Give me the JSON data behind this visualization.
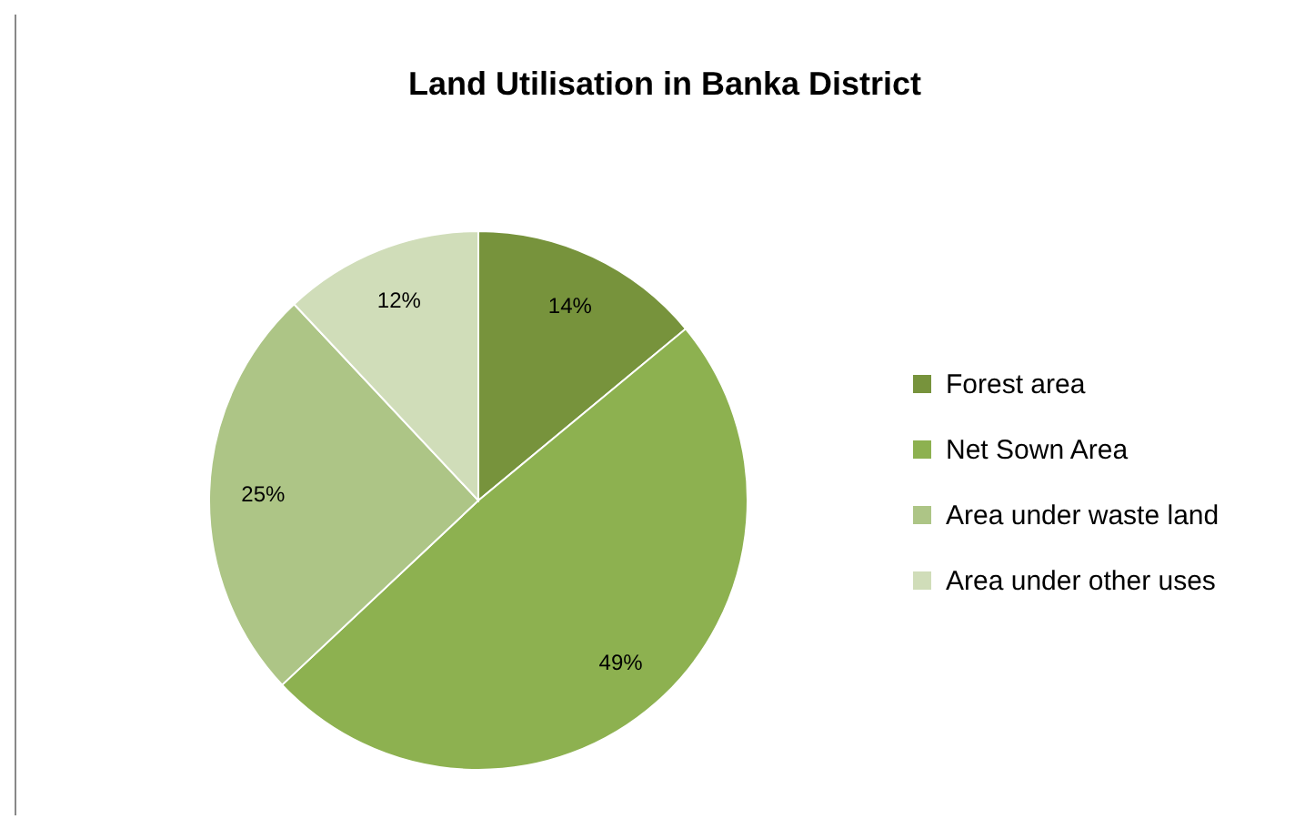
{
  "chart_data": {
    "type": "pie",
    "title": "Land Utilisation in Banka District",
    "categories": [
      "Forest  area",
      "Net Sown Area",
      "Area under waste land",
      "Area under other uses"
    ],
    "values": [
      14,
      49,
      25,
      12
    ],
    "colors": [
      "#77933c",
      "#8db150",
      "#adc586",
      "#d0ddb9"
    ],
    "value_labels": [
      "14%",
      "49%",
      "25%",
      "12%"
    ],
    "legend": "right"
  }
}
